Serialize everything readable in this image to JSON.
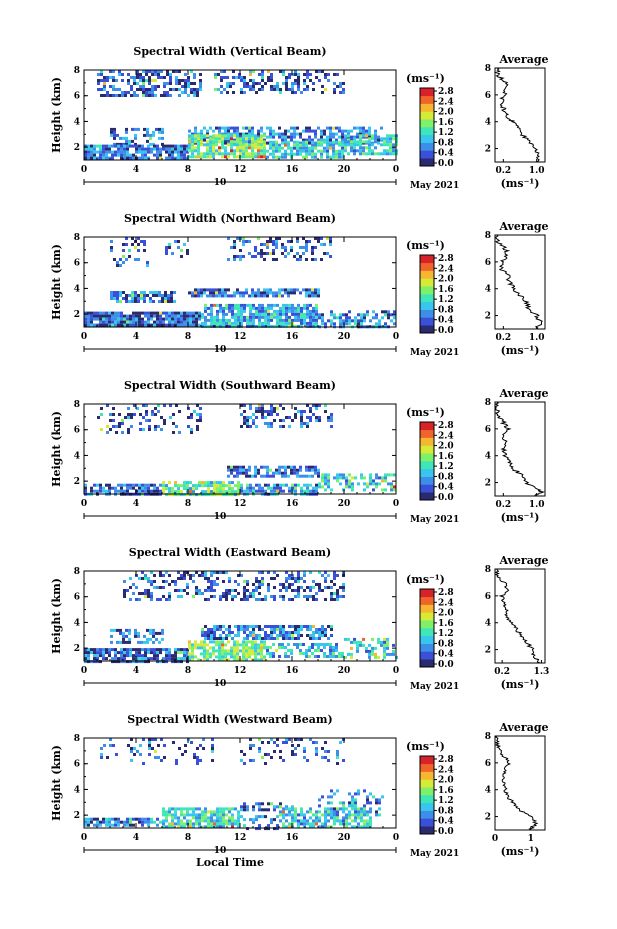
{
  "figure": {
    "x_axis_label": "Local Time",
    "date_label": "May 2021",
    "date_tick": "10",
    "colorbar_unit": "(ms⁻¹)",
    "avg_title": "Average",
    "avg_xlabel": "(ms⁻¹)",
    "height_label": "Height (km)"
  },
  "colors": {
    "colormap": [
      "#2a2a6e",
      "#3a50d8",
      "#3c8ee8",
      "#38c6ee",
      "#3ee6b8",
      "#7ef06a",
      "#d6ea38",
      "#f6b630",
      "#f0642a",
      "#d8222a"
    ],
    "profile_line": "#000000"
  },
  "chart_data": [
    {
      "type": "heatmap",
      "title": "Spectral Width (Vertical Beam)",
      "xlabel": "",
      "ylabel": "Height (km)",
      "xlim": [
        0,
        24
      ],
      "ylim": [
        1,
        8
      ],
      "x_ticks": [
        "0",
        "4",
        "8",
        "12",
        "16",
        "20",
        "0"
      ],
      "y_ticks": [
        "2",
        "4",
        "6",
        "8"
      ],
      "colorbar": {
        "ticks": [
          "0.0",
          "0.4",
          "0.8",
          "1.2",
          "1.6",
          "2.0",
          "2.4",
          "2.8"
        ],
        "range": [
          0,
          2.8
        ]
      },
      "regions": [
        {
          "x": [
            1,
            9
          ],
          "y": [
            6.0,
            8.0
          ],
          "v": 0.4,
          "d": 0.5
        },
        {
          "x": [
            10,
            12
          ],
          "y": [
            6.2,
            8.0
          ],
          "v": 0.4,
          "d": 0.35
        },
        {
          "x": [
            12,
            15
          ],
          "y": [
            6.2,
            8.0
          ],
          "v": 0.5,
          "d": 0.4
        },
        {
          "x": [
            15,
            20
          ],
          "y": [
            6.2,
            8.0
          ],
          "v": 0.4,
          "d": 0.35
        },
        {
          "x": [
            2,
            6
          ],
          "y": [
            2.2,
            3.5
          ],
          "v": 0.5,
          "d": 0.4
        },
        {
          "x": [
            8,
            23
          ],
          "y": [
            2.3,
            3.6
          ],
          "v": 0.6,
          "d": 0.6
        },
        {
          "x": [
            0,
            8
          ],
          "y": [
            1.0,
            2.2
          ],
          "v": 0.6,
          "d": 0.85
        },
        {
          "x": [
            8,
            14
          ],
          "y": [
            1.2,
            3.0
          ],
          "v": 1.4,
          "d": 0.85
        },
        {
          "x": [
            14,
            20
          ],
          "y": [
            1.2,
            2.5
          ],
          "v": 1.0,
          "d": 0.7
        },
        {
          "x": [
            20,
            24
          ],
          "y": [
            1.5,
            3.0
          ],
          "v": 1.1,
          "d": 0.7
        }
      ],
      "profile": {
        "xlim": [
          0,
          1.2
        ],
        "ylim": [
          1,
          8
        ],
        "x_ticks": [
          "0.2",
          "1.0"
        ],
        "x_tick_values": [
          0.2,
          1.0
        ],
        "y_ticks": [
          "2",
          "4",
          "6",
          "8"
        ],
        "y": [
          1.0,
          1.5,
          2.0,
          2.5,
          3.0,
          3.5,
          4.0,
          4.3,
          4.6,
          5.0,
          5.5,
          6.0,
          6.5,
          7.0,
          7.5,
          8.0
        ],
        "x": [
          1.0,
          1.05,
          0.95,
          0.85,
          0.65,
          0.55,
          0.45,
          0.3,
          0.25,
          0.2,
          0.15,
          0.2,
          0.3,
          0.25,
          0.05,
          0.05
        ]
      }
    },
    {
      "type": "heatmap",
      "title": "Spectral Width (Northward Beam)",
      "xlabel": "",
      "ylabel": "Height (km)",
      "xlim": [
        0,
        24
      ],
      "ylim": [
        1,
        8
      ],
      "x_ticks": [
        "0",
        "4",
        "8",
        "12",
        "16",
        "20",
        "0"
      ],
      "y_ticks": [
        "2",
        "4",
        "6",
        "8"
      ],
      "colorbar": {
        "ticks": [
          "0.0",
          "0.4",
          "0.8",
          "1.2",
          "1.6",
          "2.0",
          "2.4",
          "2.8"
        ],
        "range": [
          0,
          2.8
        ]
      },
      "regions": [
        {
          "x": [
            2,
            5
          ],
          "y": [
            5.8,
            8.0
          ],
          "v": 0.4,
          "d": 0.3
        },
        {
          "x": [
            6,
            8
          ],
          "y": [
            6.2,
            8.0
          ],
          "v": 0.4,
          "d": 0.15
        },
        {
          "x": [
            11,
            19
          ],
          "y": [
            6.2,
            8.0
          ],
          "v": 0.4,
          "d": 0.35
        },
        {
          "x": [
            2,
            7
          ],
          "y": [
            3.0,
            3.8
          ],
          "v": 0.5,
          "d": 0.7
        },
        {
          "x": [
            8,
            18
          ],
          "y": [
            3.3,
            4.0
          ],
          "v": 0.5,
          "d": 0.8
        },
        {
          "x": [
            0,
            9
          ],
          "y": [
            1.0,
            2.2
          ],
          "v": 0.4,
          "d": 0.9
        },
        {
          "x": [
            9,
            18
          ],
          "y": [
            1.0,
            2.8
          ],
          "v": 0.9,
          "d": 0.85
        },
        {
          "x": [
            18,
            24
          ],
          "y": [
            1.0,
            2.3
          ],
          "v": 0.7,
          "d": 0.5
        }
      ],
      "profile": {
        "xlim": [
          0,
          1.2
        ],
        "ylim": [
          1,
          8
        ],
        "x_ticks": [
          "0.2",
          "1.0"
        ],
        "x_tick_values": [
          0.2,
          1.0
        ],
        "y_ticks": [
          "2",
          "4",
          "6",
          "8"
        ],
        "y": [
          1.0,
          1.5,
          2.0,
          2.5,
          3.0,
          3.5,
          4.0,
          4.5,
          5.0,
          5.5,
          6.0,
          6.5,
          7.0,
          7.5,
          8.0
        ],
        "x": [
          1.0,
          1.1,
          1.0,
          0.8,
          0.75,
          0.6,
          0.45,
          0.35,
          0.3,
          0.15,
          0.15,
          0.3,
          0.25,
          0.05,
          0.05
        ]
      }
    },
    {
      "type": "heatmap",
      "title": "Spectral Width (Southward Beam)",
      "xlabel": "",
      "ylabel": "Height (km)",
      "xlim": [
        0,
        24
      ],
      "ylim": [
        1,
        8
      ],
      "x_ticks": [
        "0",
        "4",
        "8",
        "12",
        "16",
        "20",
        "0"
      ],
      "y_ticks": [
        "2",
        "4",
        "6",
        "8"
      ],
      "colorbar": {
        "ticks": [
          "0.0",
          "0.4",
          "0.8",
          "1.2",
          "1.6",
          "2.0",
          "2.4",
          "2.8"
        ],
        "range": [
          0,
          2.8
        ]
      },
      "regions": [
        {
          "x": [
            1,
            9
          ],
          "y": [
            5.8,
            8.0
          ],
          "v": 0.4,
          "d": 0.25
        },
        {
          "x": [
            12,
            19
          ],
          "y": [
            6.2,
            8.0
          ],
          "v": 0.4,
          "d": 0.4
        },
        {
          "x": [
            11,
            18
          ],
          "y": [
            2.3,
            3.2
          ],
          "v": 0.5,
          "d": 0.7
        },
        {
          "x": [
            0,
            6
          ],
          "y": [
            1.0,
            1.8
          ],
          "v": 0.5,
          "d": 0.8
        },
        {
          "x": [
            6,
            12
          ],
          "y": [
            1.0,
            2.0
          ],
          "v": 1.3,
          "d": 0.8
        },
        {
          "x": [
            12,
            18
          ],
          "y": [
            1.0,
            1.8
          ],
          "v": 0.8,
          "d": 0.7
        },
        {
          "x": [
            18,
            24
          ],
          "y": [
            1.2,
            2.6
          ],
          "v": 1.0,
          "d": 0.5
        }
      ],
      "profile": {
        "xlim": [
          0,
          1.2
        ],
        "ylim": [
          1,
          8
        ],
        "x_ticks": [
          "0.2",
          "1.0"
        ],
        "x_tick_values": [
          0.2,
          1.0
        ],
        "y_ticks": [
          "2",
          "4",
          "6",
          "8"
        ],
        "y": [
          1.0,
          1.3,
          1.6,
          2.0,
          2.5,
          3.0,
          3.5,
          4.0,
          4.5,
          5.0,
          5.5,
          6.0,
          6.5,
          7.0,
          7.5,
          8.0
        ],
        "x": [
          0.95,
          1.1,
          1.0,
          0.75,
          0.65,
          0.45,
          0.35,
          0.25,
          0.2,
          0.3,
          0.15,
          0.3,
          0.2,
          0.05,
          0.05,
          0.05
        ]
      }
    },
    {
      "type": "heatmap",
      "title": "Spectral Width (Eastward Beam)",
      "xlabel": "",
      "ylabel": "Height (km)",
      "xlim": [
        0,
        24
      ],
      "ylim": [
        1,
        8
      ],
      "x_ticks": [
        "0",
        "4",
        "8",
        "12",
        "16",
        "20",
        "0"
      ],
      "y_ticks": [
        "2",
        "4",
        "6",
        "8"
      ],
      "colorbar": {
        "ticks": [
          "0.0",
          "0.4",
          "0.8",
          "1.2",
          "1.6",
          "2.0",
          "2.4",
          "2.8"
        ],
        "range": [
          0,
          2.8
        ]
      },
      "regions": [
        {
          "x": [
            3,
            20
          ],
          "y": [
            5.8,
            8.0
          ],
          "v": 0.4,
          "d": 0.4
        },
        {
          "x": [
            2,
            6
          ],
          "y": [
            2.4,
            3.5
          ],
          "v": 0.5,
          "d": 0.5
        },
        {
          "x": [
            9,
            19
          ],
          "y": [
            2.6,
            3.8
          ],
          "v": 0.6,
          "d": 0.7
        },
        {
          "x": [
            0,
            8
          ],
          "y": [
            1.0,
            2.0
          ],
          "v": 0.5,
          "d": 0.85
        },
        {
          "x": [
            8,
            14
          ],
          "y": [
            1.0,
            2.6
          ],
          "v": 1.4,
          "d": 0.8
        },
        {
          "x": [
            14,
            20
          ],
          "y": [
            1.3,
            2.4
          ],
          "v": 0.9,
          "d": 0.6
        },
        {
          "x": [
            20,
            24
          ],
          "y": [
            1.2,
            2.8
          ],
          "v": 1.0,
          "d": 0.5
        }
      ],
      "profile": {
        "xlim": [
          0,
          1.4
        ],
        "ylim": [
          1,
          8
        ],
        "x_ticks": [
          "0.2",
          "1.3"
        ],
        "x_tick_values": [
          0.2,
          1.3
        ],
        "y_ticks": [
          "2",
          "4",
          "6",
          "8"
        ],
        "y": [
          1.0,
          1.5,
          2.0,
          2.5,
          3.0,
          3.5,
          4.0,
          4.5,
          5.0,
          5.5,
          6.0,
          6.5,
          7.0,
          7.5,
          8.0
        ],
        "x": [
          1.25,
          1.1,
          1.05,
          0.9,
          0.75,
          0.6,
          0.45,
          0.35,
          0.3,
          0.25,
          0.2,
          0.35,
          0.25,
          0.05,
          0.05
        ]
      }
    },
    {
      "type": "heatmap",
      "title": "Spectral Width (Westward Beam)",
      "xlabel": "Local Time",
      "ylabel": "Height (km)",
      "xlim": [
        0,
        24
      ],
      "ylim": [
        1,
        8
      ],
      "x_ticks": [
        "0",
        "4",
        "8",
        "12",
        "16",
        "20",
        "0"
      ],
      "y_ticks": [
        "2",
        "4",
        "6",
        "8"
      ],
      "colorbar": {
        "ticks": [
          "0.0",
          "0.4",
          "0.8",
          "1.2",
          "1.6",
          "2.0",
          "2.4",
          "2.8"
        ],
        "range": [
          0,
          2.8
        ]
      },
      "regions": [
        {
          "x": [
            1,
            10
          ],
          "y": [
            6.0,
            8.0
          ],
          "v": 0.4,
          "d": 0.15
        },
        {
          "x": [
            12,
            20
          ],
          "y": [
            6.0,
            8.0
          ],
          "v": 0.4,
          "d": 0.2
        },
        {
          "x": [
            12,
            16
          ],
          "y": [
            2.3,
            3.0
          ],
          "v": 0.5,
          "d": 0.5
        },
        {
          "x": [
            18,
            23
          ],
          "y": [
            2.0,
            4.0
          ],
          "v": 0.7,
          "d": 0.3
        },
        {
          "x": [
            0,
            6
          ],
          "y": [
            1.2,
            1.8
          ],
          "v": 0.6,
          "d": 0.8
        },
        {
          "x": [
            6,
            12
          ],
          "y": [
            1.0,
            2.6
          ],
          "v": 1.1,
          "d": 0.75
        },
        {
          "x": [
            12,
            15
          ],
          "y": [
            1.0,
            2.0
          ],
          "v": 0.6,
          "d": 0.4
        },
        {
          "x": [
            15,
            22
          ],
          "y": [
            1.0,
            2.6
          ],
          "v": 1.0,
          "d": 0.7
        }
      ],
      "profile": {
        "xlim": [
          0,
          1.4
        ],
        "ylim": [
          1,
          8
        ],
        "x_ticks": [
          "0",
          "1"
        ],
        "x_tick_values": [
          0,
          1
        ],
        "y_ticks": [
          "2",
          "4",
          "6",
          "8"
        ],
        "y": [
          1.0,
          1.5,
          2.0,
          2.5,
          3.0,
          3.5,
          4.0,
          4.5,
          5.0,
          5.5,
          6.0,
          6.5,
          7.0,
          7.5,
          8.0
        ],
        "x": [
          1.0,
          1.15,
          1.0,
          0.7,
          0.5,
          0.35,
          0.3,
          0.25,
          0.2,
          0.3,
          0.4,
          0.25,
          0.1,
          0.05,
          0.05
        ]
      }
    }
  ]
}
